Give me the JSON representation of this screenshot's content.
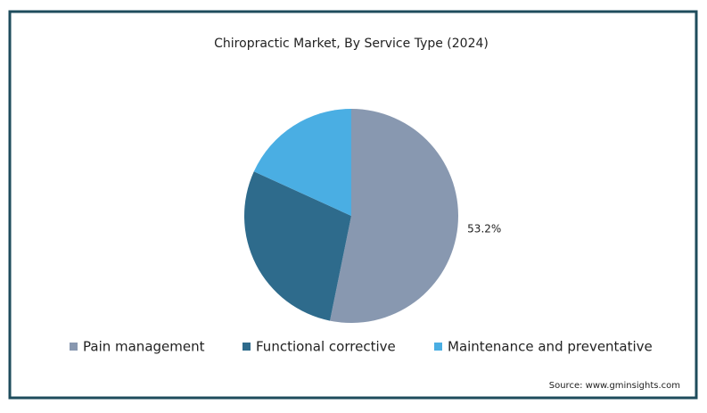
{
  "chart_data": {
    "type": "pie",
    "title": "Chiropractic Market, By Service Type (2024)",
    "categories": [
      "Pain management",
      "Functional corrective",
      "Maintenance and preventative"
    ],
    "values": [
      53.2,
      28.6,
      18.2
    ],
    "value_labels": [
      "53.2%",
      null,
      null
    ],
    "colors": [
      "#8898b0",
      "#2e6b8c",
      "#4aaee3"
    ],
    "source": "Source: www.gminsights.com"
  }
}
